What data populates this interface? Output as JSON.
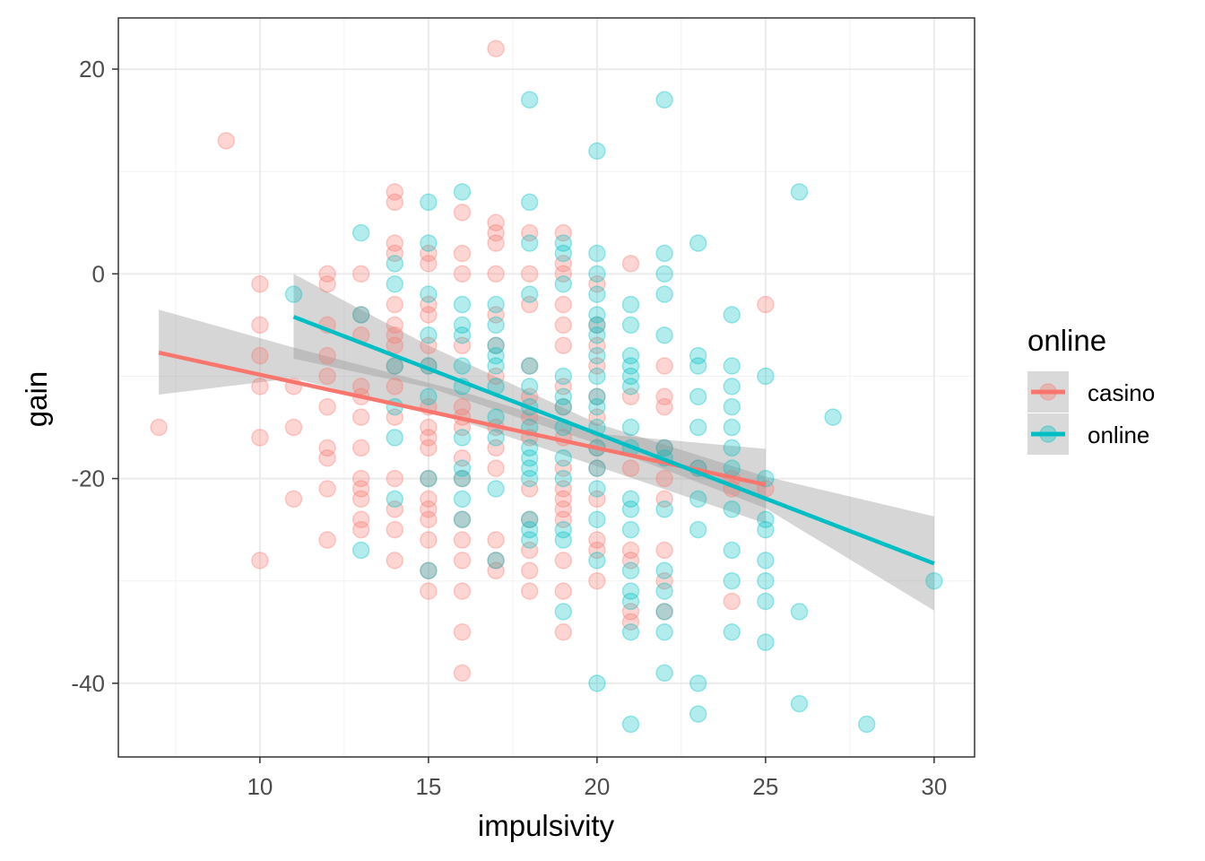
{
  "chart_data": {
    "type": "scatter",
    "title": "",
    "xlabel": "impulsivity",
    "ylabel": "gain",
    "xlim": [
      5.8,
      31.2
    ],
    "ylim": [
      -47.2,
      25
    ],
    "xticks": [
      10,
      15,
      20,
      25,
      30
    ],
    "yticks": [
      -40,
      -20,
      0,
      20
    ],
    "grid": true,
    "legend": {
      "title": "online",
      "position": "right",
      "entries": [
        "casino",
        "online"
      ]
    },
    "colors": {
      "casino": "#F8766D",
      "online": "#00BFC4",
      "ribbon": "#999999",
      "grid_major": "#ebebeb",
      "grid_minor": "#f2f2f2",
      "panel_border": "#333333",
      "key_background": "#d9d9d9"
    },
    "series": [
      {
        "name": "casino",
        "points": [
          [
            7,
            -15
          ],
          [
            9,
            13
          ],
          [
            10,
            -1
          ],
          [
            10,
            -5
          ],
          [
            10,
            -8
          ],
          [
            10,
            -11
          ],
          [
            10,
            -16
          ],
          [
            10,
            -28
          ],
          [
            11,
            -11
          ],
          [
            11,
            -15
          ],
          [
            11,
            -22
          ],
          [
            12,
            0
          ],
          [
            12,
            -1
          ],
          [
            12,
            -5
          ],
          [
            12,
            -8
          ],
          [
            12,
            -10
          ],
          [
            12,
            -13
          ],
          [
            12,
            -17
          ],
          [
            12,
            -18
          ],
          [
            12,
            -21
          ],
          [
            12,
            -26
          ],
          [
            13,
            0
          ],
          [
            13,
            -4
          ],
          [
            13,
            -6
          ],
          [
            13,
            -11
          ],
          [
            13,
            -12
          ],
          [
            13,
            -14
          ],
          [
            13,
            -17
          ],
          [
            13,
            -20
          ],
          [
            13,
            -21
          ],
          [
            13,
            -22
          ],
          [
            13,
            -24
          ],
          [
            13,
            -25
          ],
          [
            14,
            8
          ],
          [
            14,
            7
          ],
          [
            14,
            3
          ],
          [
            14,
            2
          ],
          [
            14,
            -3
          ],
          [
            14,
            -5
          ],
          [
            14,
            -6
          ],
          [
            14,
            -7
          ],
          [
            14,
            -9
          ],
          [
            14,
            -11
          ],
          [
            14,
            -14
          ],
          [
            14,
            -20
          ],
          [
            14,
            -23
          ],
          [
            14,
            -25
          ],
          [
            14,
            -28
          ],
          [
            15,
            2
          ],
          [
            15,
            1
          ],
          [
            15,
            -3
          ],
          [
            15,
            -4
          ],
          [
            15,
            -7
          ],
          [
            15,
            -9
          ],
          [
            15,
            -13
          ],
          [
            15,
            -15
          ],
          [
            15,
            -16
          ],
          [
            15,
            -17
          ],
          [
            15,
            -20
          ],
          [
            15,
            -22
          ],
          [
            15,
            -23
          ],
          [
            15,
            -24
          ],
          [
            15,
            -26
          ],
          [
            15,
            -29
          ],
          [
            15,
            -31
          ],
          [
            16,
            6
          ],
          [
            16,
            2
          ],
          [
            16,
            0
          ],
          [
            16,
            -7
          ],
          [
            16,
            -13
          ],
          [
            16,
            -14
          ],
          [
            16,
            -15
          ],
          [
            16,
            -18
          ],
          [
            16,
            -20
          ],
          [
            16,
            -24
          ],
          [
            16,
            -26
          ],
          [
            16,
            -28
          ],
          [
            16,
            -31
          ],
          [
            16,
            -35
          ],
          [
            16,
            -39
          ],
          [
            17,
            22
          ],
          [
            17,
            5
          ],
          [
            17,
            4
          ],
          [
            17,
            3
          ],
          [
            17,
            0
          ],
          [
            17,
            -4
          ],
          [
            17,
            -7
          ],
          [
            17,
            -10
          ],
          [
            17,
            -15
          ],
          [
            17,
            -17
          ],
          [
            17,
            -19
          ],
          [
            17,
            -26
          ],
          [
            17,
            -28
          ],
          [
            17,
            -29
          ],
          [
            18,
            4
          ],
          [
            18,
            0
          ],
          [
            18,
            -3
          ],
          [
            18,
            -9
          ],
          [
            18,
            -12
          ],
          [
            18,
            -14
          ],
          [
            18,
            -16
          ],
          [
            18,
            -21
          ],
          [
            18,
            -24
          ],
          [
            18,
            -27
          ],
          [
            18,
            -29
          ],
          [
            18,
            -31
          ],
          [
            19,
            4
          ],
          [
            19,
            0
          ],
          [
            19,
            1
          ],
          [
            19,
            -3
          ],
          [
            19,
            -5
          ],
          [
            19,
            -7
          ],
          [
            19,
            -11
          ],
          [
            19,
            -13
          ],
          [
            19,
            -16
          ],
          [
            19,
            -19
          ],
          [
            19,
            -21
          ],
          [
            19,
            -22
          ],
          [
            19,
            -23
          ],
          [
            19,
            -24
          ],
          [
            19,
            -28
          ],
          [
            19,
            -31
          ],
          [
            19,
            -35
          ],
          [
            20,
            -1
          ],
          [
            20,
            -5
          ],
          [
            20,
            -7
          ],
          [
            20,
            -9
          ],
          [
            20,
            -12
          ],
          [
            20,
            -14
          ],
          [
            20,
            -17
          ],
          [
            20,
            -19
          ],
          [
            20,
            -22
          ],
          [
            20,
            -26
          ],
          [
            20,
            -27
          ],
          [
            20,
            -30
          ],
          [
            21,
            1
          ],
          [
            21,
            -12
          ],
          [
            21,
            -19
          ],
          [
            21,
            -27
          ],
          [
            21,
            -28
          ],
          [
            21,
            -33
          ],
          [
            21,
            -34
          ],
          [
            22,
            -9
          ],
          [
            22,
            -12
          ],
          [
            22,
            -13
          ],
          [
            22,
            -17
          ],
          [
            22,
            -20
          ],
          [
            22,
            -22
          ],
          [
            22,
            -27
          ],
          [
            22,
            -30
          ],
          [
            22,
            -33
          ],
          [
            23,
            -19
          ],
          [
            24,
            -20
          ],
          [
            24,
            -21
          ],
          [
            24,
            -32
          ],
          [
            25,
            -3
          ],
          [
            25,
            -21
          ]
        ],
        "fit_line": {
          "x": [
            7,
            25
          ],
          "y": [
            -7.7,
            -20.6
          ]
        },
        "ribbon": {
          "x": [
            7,
            11,
            16,
            20,
            25
          ],
          "lower": [
            -11.8,
            -10.2,
            -14.4,
            -18.8,
            -24.4
          ],
          "upper": [
            -3.5,
            -7.2,
            -11.5,
            -15.6,
            -17.1
          ]
        }
      },
      {
        "name": "online",
        "points": [
          [
            11,
            -2
          ],
          [
            13,
            4
          ],
          [
            13,
            -4
          ],
          [
            13,
            -27
          ],
          [
            14,
            1
          ],
          [
            14,
            -1
          ],
          [
            14,
            -9
          ],
          [
            14,
            -13
          ],
          [
            14,
            -16
          ],
          [
            14,
            -22
          ],
          [
            15,
            7
          ],
          [
            15,
            3
          ],
          [
            15,
            -2
          ],
          [
            15,
            -6
          ],
          [
            15,
            -9
          ],
          [
            15,
            -12
          ],
          [
            15,
            -20
          ],
          [
            15,
            -29
          ],
          [
            16,
            8
          ],
          [
            16,
            -3
          ],
          [
            16,
            -5
          ],
          [
            16,
            -6
          ],
          [
            16,
            -9
          ],
          [
            16,
            -11
          ],
          [
            16,
            -16
          ],
          [
            16,
            -19
          ],
          [
            16,
            -20
          ],
          [
            16,
            -22
          ],
          [
            16,
            -24
          ],
          [
            17,
            -3
          ],
          [
            17,
            -5
          ],
          [
            17,
            -7
          ],
          [
            17,
            -8
          ],
          [
            17,
            -9
          ],
          [
            17,
            -11
          ],
          [
            17,
            -14
          ],
          [
            17,
            -16
          ],
          [
            17,
            -21
          ],
          [
            17,
            -28
          ],
          [
            18,
            17
          ],
          [
            18,
            7
          ],
          [
            18,
            3
          ],
          [
            18,
            -2
          ],
          [
            18,
            -9
          ],
          [
            18,
            -11
          ],
          [
            18,
            -13
          ],
          [
            18,
            -15
          ],
          [
            18,
            -17
          ],
          [
            18,
            -18
          ],
          [
            18,
            -19
          ],
          [
            18,
            -20
          ],
          [
            18,
            -24
          ],
          [
            18,
            -25
          ],
          [
            18,
            -26
          ],
          [
            19,
            3
          ],
          [
            19,
            2
          ],
          [
            19,
            -1
          ],
          [
            19,
            -10
          ],
          [
            19,
            -12
          ],
          [
            19,
            -13
          ],
          [
            19,
            -15
          ],
          [
            19,
            -18
          ],
          [
            19,
            -20
          ],
          [
            19,
            -25
          ],
          [
            19,
            -26
          ],
          [
            19,
            -33
          ],
          [
            20,
            12
          ],
          [
            20,
            2
          ],
          [
            20,
            0
          ],
          [
            20,
            -2
          ],
          [
            20,
            -4
          ],
          [
            20,
            -5
          ],
          [
            20,
            -6
          ],
          [
            20,
            -8
          ],
          [
            20,
            -10
          ],
          [
            20,
            -12
          ],
          [
            20,
            -13
          ],
          [
            20,
            -15
          ],
          [
            20,
            -17
          ],
          [
            20,
            -19
          ],
          [
            20,
            -21
          ],
          [
            20,
            -24
          ],
          [
            20,
            -28
          ],
          [
            20,
            -40
          ],
          [
            21,
            -3
          ],
          [
            21,
            -5
          ],
          [
            21,
            -8
          ],
          [
            21,
            -9
          ],
          [
            21,
            -10
          ],
          [
            21,
            -11
          ],
          [
            21,
            -15
          ],
          [
            21,
            -17
          ],
          [
            21,
            -22
          ],
          [
            21,
            -23
          ],
          [
            21,
            -25
          ],
          [
            21,
            -29
          ],
          [
            21,
            -31
          ],
          [
            21,
            -32
          ],
          [
            21,
            -35
          ],
          [
            21,
            -44
          ],
          [
            22,
            17
          ],
          [
            22,
            2
          ],
          [
            22,
            0
          ],
          [
            22,
            -2
          ],
          [
            22,
            -6
          ],
          [
            22,
            -17
          ],
          [
            22,
            -18
          ],
          [
            22,
            -23
          ],
          [
            22,
            -29
          ],
          [
            22,
            -31
          ],
          [
            22,
            -33
          ],
          [
            22,
            -35
          ],
          [
            22,
            -39
          ],
          [
            23,
            3
          ],
          [
            23,
            -8
          ],
          [
            23,
            -9
          ],
          [
            23,
            -12
          ],
          [
            23,
            -15
          ],
          [
            23,
            -19
          ],
          [
            23,
            -22
          ],
          [
            23,
            -25
          ],
          [
            23,
            -40
          ],
          [
            23,
            -43
          ],
          [
            24,
            -4
          ],
          [
            24,
            -9
          ],
          [
            24,
            -11
          ],
          [
            24,
            -13
          ],
          [
            24,
            -15
          ],
          [
            24,
            -17
          ],
          [
            24,
            -19
          ],
          [
            24,
            -23
          ],
          [
            24,
            -27
          ],
          [
            24,
            -30
          ],
          [
            24,
            -35
          ],
          [
            25,
            -10
          ],
          [
            25,
            -20
          ],
          [
            25,
            -24
          ],
          [
            25,
            -25
          ],
          [
            25,
            -28
          ],
          [
            25,
            -30
          ],
          [
            25,
            -32
          ],
          [
            25,
            -36
          ],
          [
            26,
            8
          ],
          [
            26,
            -33
          ],
          [
            26,
            -42
          ],
          [
            27,
            -14
          ],
          [
            28,
            -44
          ],
          [
            30,
            -30
          ]
        ],
        "fit_line": {
          "x": [
            11,
            30
          ],
          "y": [
            -4.2,
            -28.3
          ]
        },
        "ribbon": {
          "x": [
            11,
            15,
            20,
            25,
            30
          ],
          "lower": [
            -8.3,
            -11.1,
            -16.6,
            -22.9,
            -32.9
          ],
          "upper": [
            0,
            -7.0,
            -14.6,
            -19.8,
            -23.7
          ]
        }
      }
    ]
  }
}
